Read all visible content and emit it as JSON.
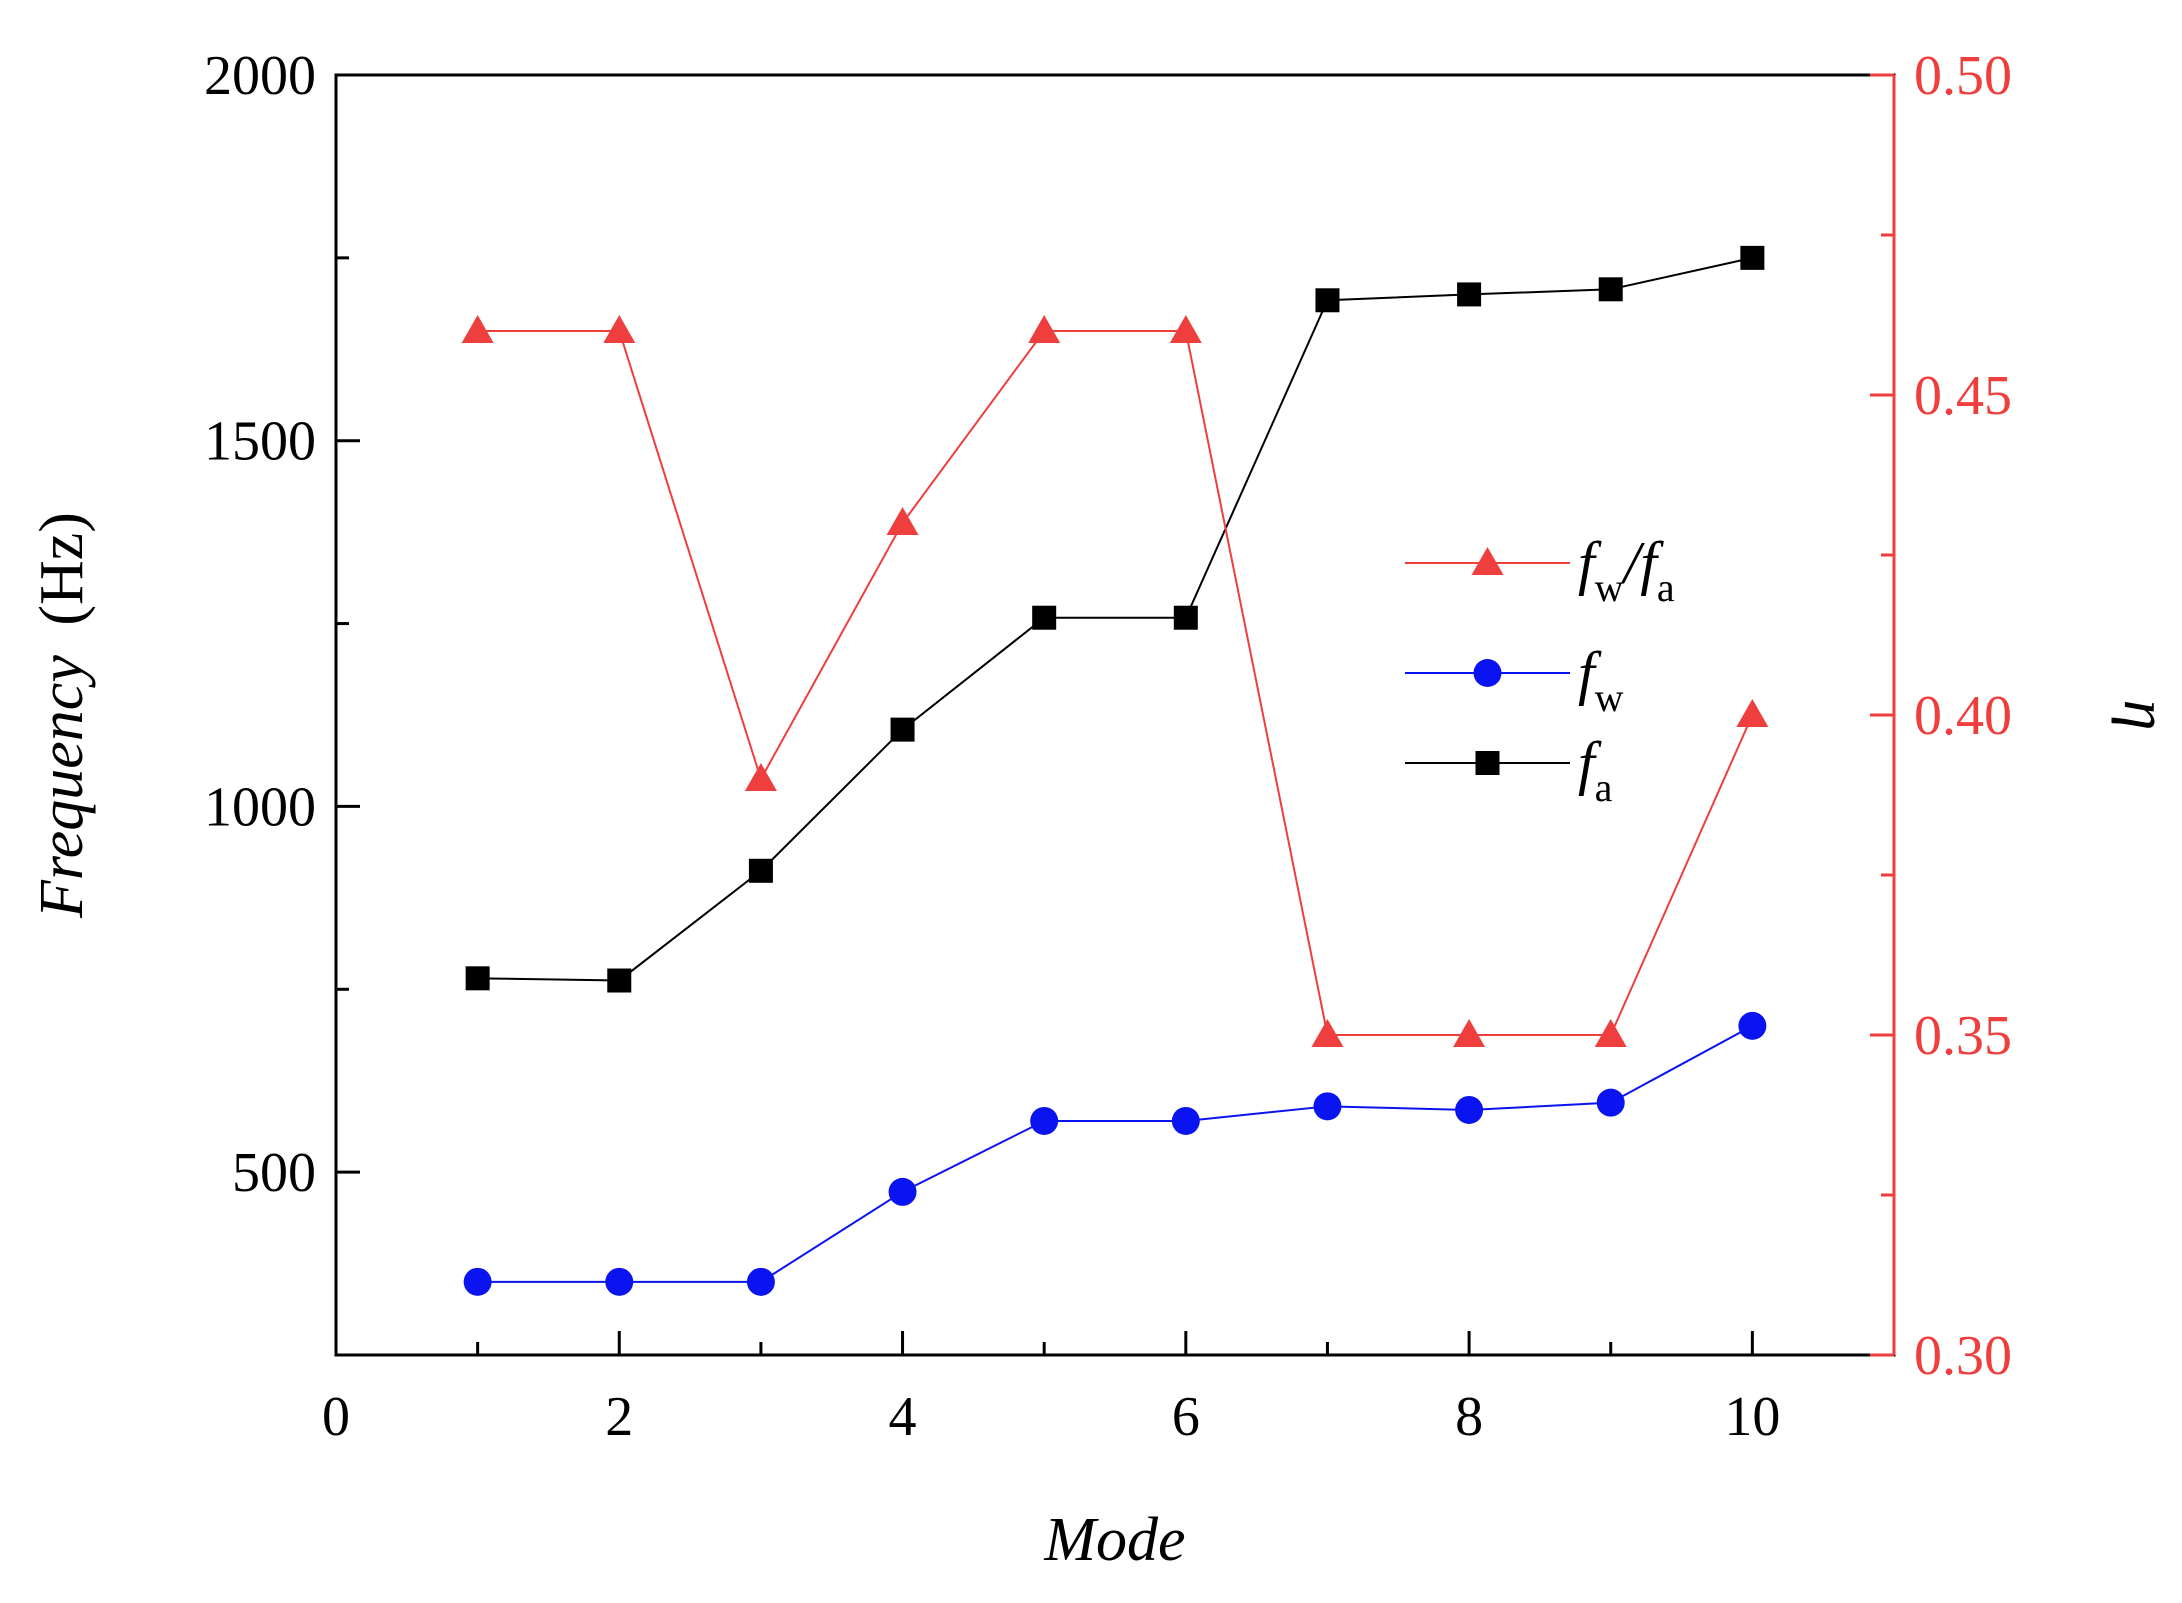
{
  "chart_data": {
    "type": "line",
    "title": "",
    "xlabel": "Mode",
    "ylabel": "Frequency",
    "ylabel_unit": "(Hz)",
    "y2label": "η",
    "xlim": [
      0,
      11
    ],
    "ylim": [
      250,
      2000
    ],
    "y2lim": [
      0.3,
      0.5
    ],
    "xticks": [
      0,
      2,
      4,
      6,
      8,
      10
    ],
    "xtick_labels": [
      "0",
      "2",
      "4",
      "6",
      "8",
      "10"
    ],
    "yticks": [
      500,
      1000,
      1500,
      2000
    ],
    "ytick_labels": [
      "500",
      "1000",
      "1500",
      "2000"
    ],
    "y2ticks": [
      0.3,
      0.35,
      0.4,
      0.45,
      0.5
    ],
    "y2tick_labels": [
      "0.30",
      "0.35",
      "0.40",
      "0.45",
      "0.50"
    ],
    "grid": false,
    "legend_position": "center-right",
    "x": [
      1,
      2,
      3,
      4,
      5,
      6,
      7,
      8,
      9,
      10
    ],
    "series": [
      {
        "name": "fw/fa",
        "label_main": "f",
        "label_sub": "w",
        "label_sep": "/",
        "label_main2": "f",
        "label_sub2": "a",
        "axis": "right",
        "marker": "triangle",
        "color": "#ee3e3e",
        "values": [
          0.46,
          0.46,
          0.39,
          0.43,
          0.46,
          0.46,
          0.35,
          0.35,
          0.35,
          0.4
        ]
      },
      {
        "name": "fw",
        "label_main": "f",
        "label_sub": "w",
        "axis": "left",
        "marker": "circle",
        "color": "#0a14f0",
        "values": [
          350,
          350,
          350,
          473,
          570,
          570,
          590,
          585,
          595,
          700
        ]
      },
      {
        "name": "fa",
        "label_main": "f",
        "label_sub": "a",
        "axis": "left",
        "marker": "square",
        "color": "#000000",
        "values": [
          765,
          762,
          912,
          1105,
          1258,
          1258,
          1692,
          1700,
          1707,
          1750
        ]
      }
    ],
    "colors": {
      "left_axis": "#000000",
      "right_axis": "#ee3e3e"
    }
  }
}
